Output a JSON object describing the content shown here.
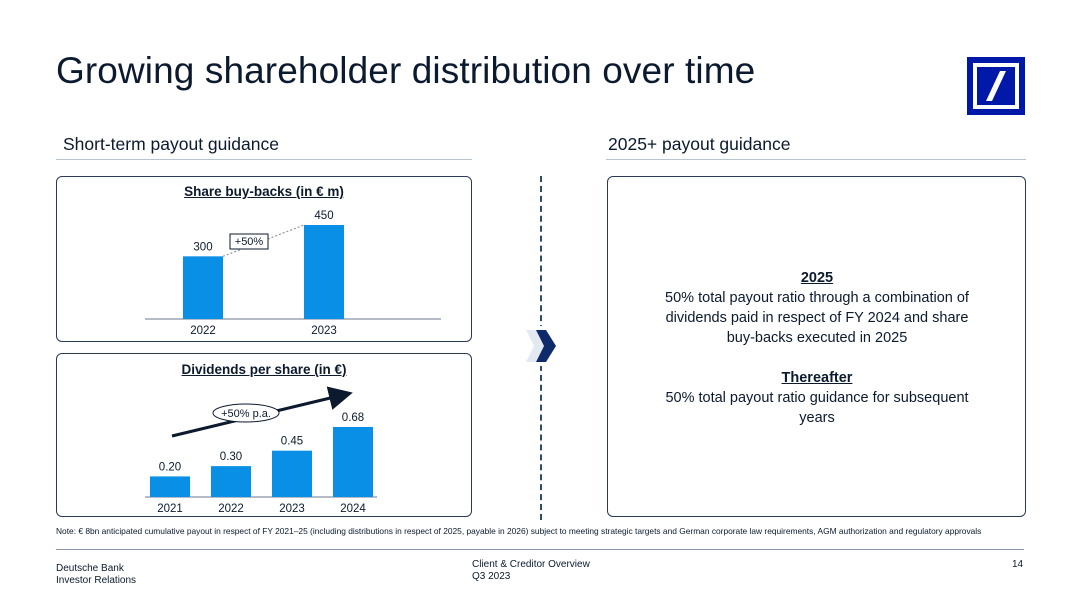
{
  "title": "Growing shareholder distribution over time",
  "left_section": {
    "heading": "Short-term payout guidance"
  },
  "right_section": {
    "heading": "2025+ payout guidance",
    "block1_title": "2025",
    "block1_text": "50% total payout ratio through a combination of dividends paid in respect of FY 2024 and share buy-backs executed in 2025",
    "block2_title": "Thereafter",
    "block2_text": "50% total payout ratio guidance for subsequent years"
  },
  "colors": {
    "bar": "#0a8fe6",
    "brand": "#0018a8",
    "text": "#0b1a2e"
  },
  "chart_data": [
    {
      "type": "bar",
      "title": "Share buy-backs (in € m)",
      "categories": [
        "2022",
        "2023"
      ],
      "values": [
        300,
        450
      ],
      "labels": [
        "300",
        "450"
      ],
      "ylim": [
        0,
        450
      ],
      "annotation": "+50%",
      "grid": false
    },
    {
      "type": "bar",
      "title": "Dividends per share (in €)",
      "categories": [
        "2021",
        "2022",
        "2023",
        "2024"
      ],
      "values": [
        0.2,
        0.3,
        0.45,
        0.68
      ],
      "labels": [
        "0.20",
        "0.30",
        "0.45",
        "0.68"
      ],
      "ylim": [
        0,
        0.68
      ],
      "annotation": "+50% p.a.",
      "grid": false
    }
  ],
  "note": "Note: € 8bn anticipated cumulative payout in respect of FY 2021–25 (including distributions in respect of 2025, payable in 2026) subject to meeting strategic targets and German corporate law requirements, AGM authorization and regulatory approvals",
  "footer": {
    "company": "Deutsche Bank",
    "department": "Investor Relations",
    "doc_title": "Client & Creditor Overview",
    "period": "Q3 2023",
    "page_number": "14"
  },
  "icons": {
    "logo": "deutsche-bank-logo",
    "chevron": "chevron-right-icon"
  }
}
